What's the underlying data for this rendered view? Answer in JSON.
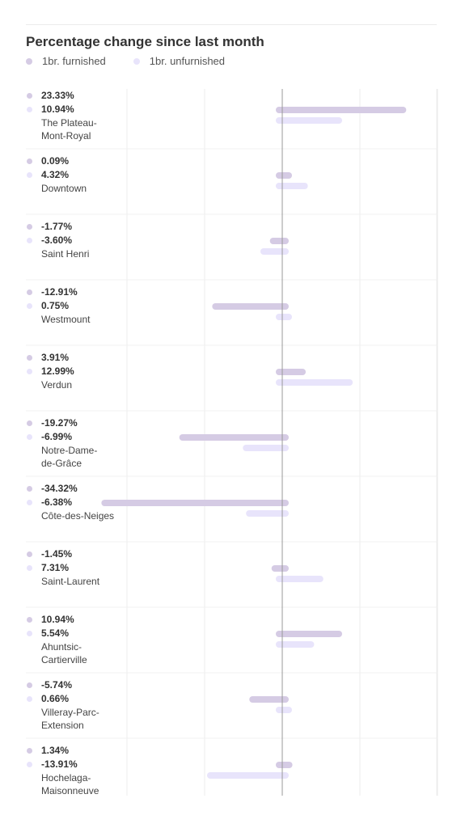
{
  "colors": {
    "furnished": "#d5cbe4",
    "unfurnished": "#e8e4fb",
    "zero_line": "#999999",
    "grid": "#ececec",
    "separator": "#f0f0f0"
  },
  "chart_data": {
    "type": "bar",
    "orientation": "horizontal",
    "title": "Percentage change since last month",
    "legend_position": "top-left",
    "grid": true,
    "xlim": [
      -40,
      40
    ],
    "categories": [
      "The Plateau-Mont-Royal",
      "Downtown",
      "Saint Henri",
      "Westmount",
      "Verdun",
      "Notre-Dame-de-Grâce",
      "Côte-des-Neiges",
      "Saint-Laurent",
      "Ahuntsic-Cartierville",
      "Villeray-Parc-Extension",
      "Hochelaga-Maisonneuve"
    ],
    "category_lines": [
      [
        "The Plateau-",
        "Mont-Royal"
      ],
      [
        "Downtown"
      ],
      [
        "Saint Henri"
      ],
      [
        "Westmount"
      ],
      [
        "Verdun"
      ],
      [
        "Notre-Dame-",
        "de-Grâce"
      ],
      [
        "Côte-des-Neiges"
      ],
      [
        "Saint-Laurent"
      ],
      [
        "Ahuntsic-",
        "Cartierville"
      ],
      [
        "Villeray-Parc-",
        "Extension"
      ],
      [
        "Hochelaga-",
        "Maisonneuve"
      ]
    ],
    "series": [
      {
        "name": "1br. furnished",
        "values": [
          23.33,
          0.09,
          -1.77,
          -12.91,
          3.91,
          -19.27,
          -34.32,
          -1.45,
          10.94,
          -5.74,
          1.34
        ],
        "labels": [
          "23.33%",
          "0.09%",
          "-1.77%",
          "-12.91%",
          "3.91%",
          "-19.27%",
          "-34.32%",
          "-1.45%",
          "10.94%",
          "-5.74%",
          "1.34%"
        ]
      },
      {
        "name": "1br. unfurnished",
        "values": [
          10.94,
          4.32,
          -3.6,
          0.75,
          12.99,
          -6.99,
          -6.38,
          7.31,
          5.54,
          0.66,
          -13.91
        ],
        "labels": [
          "10.94%",
          "4.32%",
          "-3.60%",
          "0.75%",
          "12.99%",
          "-6.99%",
          "-6.38%",
          "7.31%",
          "5.54%",
          "0.66%",
          "-13.91%"
        ]
      }
    ]
  }
}
